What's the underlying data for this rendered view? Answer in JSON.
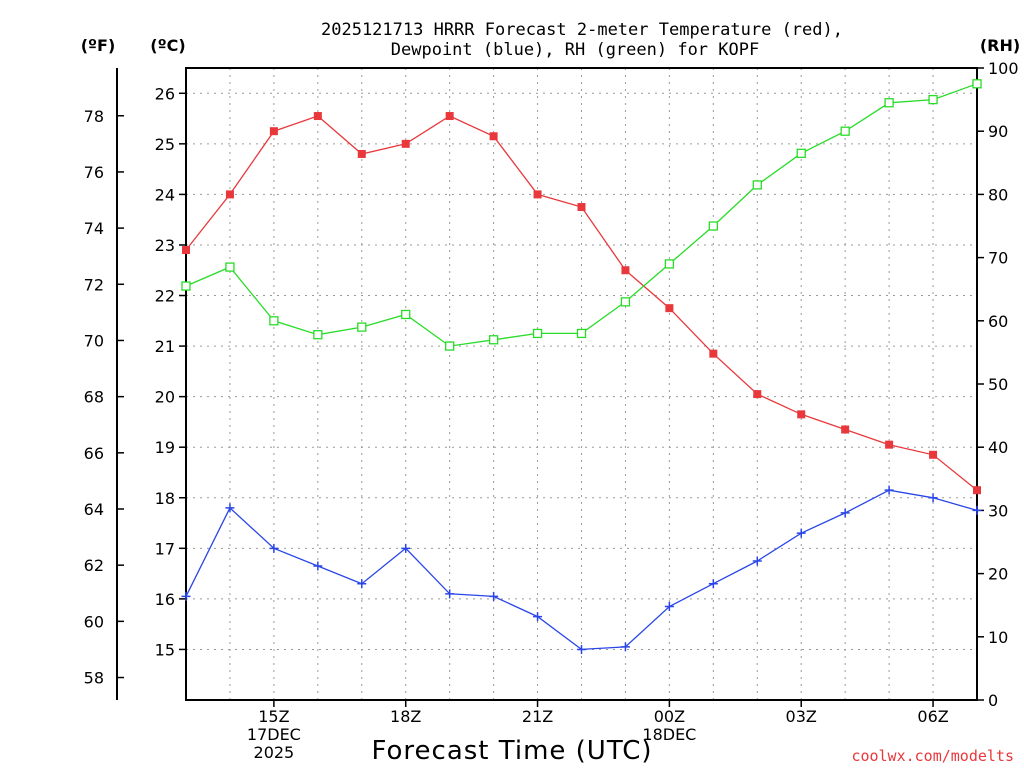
{
  "chart_data": {
    "type": "line",
    "title_lines": [
      "2025121713 HRRR Forecast 2-meter Temperature (red),",
      "Dewpoint (blue), RH (green) for KOPF"
    ],
    "xlabel": "Forecast Time (UTC)",
    "credit": "coolwx.com/modelts",
    "units": {
      "fahrenheit": "(ºF)",
      "celsius": "(ºC)",
      "rh": "(RH)"
    },
    "x_hours": [
      13,
      14,
      15,
      16,
      17,
      18,
      19,
      20,
      21,
      22,
      23,
      24,
      25,
      26,
      27,
      28,
      29,
      30,
      31
    ],
    "x_ticks": [
      {
        "hour": 15,
        "lines": [
          "15Z",
          "17DEC",
          "2025"
        ]
      },
      {
        "hour": 18,
        "lines": [
          "18Z"
        ]
      },
      {
        "hour": 21,
        "lines": [
          "21Z"
        ]
      },
      {
        "hour": 24,
        "lines": [
          "00Z",
          "18DEC"
        ]
      },
      {
        "hour": 27,
        "lines": [
          "03Z"
        ]
      },
      {
        "hour": 30,
        "lines": [
          "06Z"
        ]
      }
    ],
    "x_range": [
      13,
      31
    ],
    "celsius_range": [
      14.0,
      26.5
    ],
    "celsius_ticks": [
      15,
      16,
      17,
      18,
      19,
      20,
      21,
      22,
      23,
      24,
      25,
      26
    ],
    "fahrenheit_ticks": [
      58,
      60,
      62,
      64,
      66,
      68,
      70,
      72,
      74,
      76,
      78
    ],
    "rh_range": [
      0,
      100
    ],
    "rh_ticks": [
      0,
      10,
      20,
      30,
      40,
      50,
      60,
      70,
      80,
      90,
      100
    ],
    "series": [
      {
        "name": "2-meter Temperature",
        "color": "#e8383c",
        "marker": "filled-square",
        "axis": "celsius",
        "values": [
          22.9,
          24.0,
          25.25,
          25.55,
          24.8,
          25.0,
          25.55,
          25.15,
          24.0,
          23.75,
          22.5,
          21.75,
          20.85,
          20.05,
          19.65,
          19.35,
          19.05,
          18.85,
          18.15
        ]
      },
      {
        "name": "Dewpoint",
        "color": "#2a46e8",
        "marker": "plus",
        "axis": "celsius",
        "values": [
          16.05,
          17.8,
          17.0,
          16.65,
          16.3,
          17.0,
          16.1,
          16.05,
          15.65,
          15.0,
          15.05,
          15.85,
          16.3,
          16.75,
          17.3,
          17.7,
          18.15,
          18.0,
          17.75
        ]
      },
      {
        "name": "RH",
        "color": "#28dc28",
        "marker": "open-square",
        "axis": "rh",
        "values": [
          65.5,
          68.5,
          60.0,
          57.8,
          59.0,
          61.0,
          56.0,
          57.0,
          58.0,
          58.0,
          63.0,
          69.0,
          75.0,
          81.5,
          86.5,
          90.0,
          94.5,
          95.0,
          97.5
        ]
      }
    ]
  }
}
